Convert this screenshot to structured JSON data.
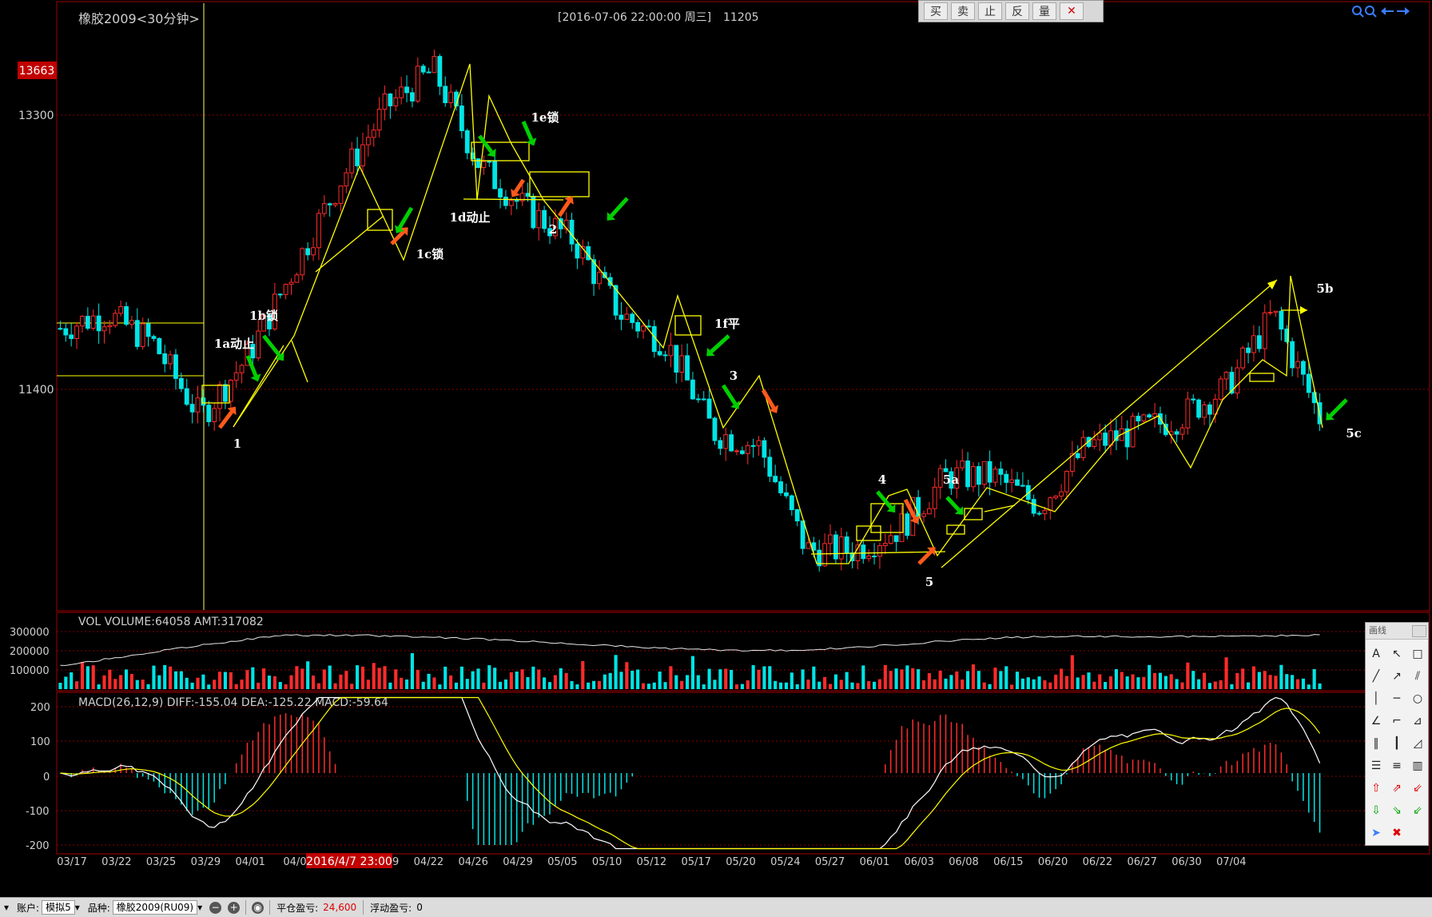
{
  "chart_header": {
    "instrument": "橡胶2009<30分钟>",
    "datetime": "[2016-07-06  22:00:00 周三]",
    "price_value": "11205",
    "current_high_label": "13663"
  },
  "toolbar": {
    "buttons": [
      "买",
      "卖",
      "止",
      "反",
      "量"
    ],
    "close_icon": "close-icon"
  },
  "top_right_icons": [
    "zoom-in-icon",
    "zoom-out-icon",
    "arrow-left-icon",
    "arrow-right-icon"
  ],
  "colors": {
    "up": "#ff2b2b",
    "down": "#00e5e5",
    "wave_lines": "#ffff00",
    "buy_arrow": "#ff5a1a",
    "sell_arrow": "#00d000",
    "label_red_bg": "#c00000"
  },
  "wave_labels": [
    "1",
    "1a动止",
    "1b锁",
    "1c锁",
    "1d动止",
    "1e锁",
    "2",
    "1f平",
    "3",
    "4",
    "5",
    "5a",
    "5b",
    "5c"
  ],
  "volume_panel": {
    "title": "VOL  VOLUME:64058 AMT:317082",
    "y_ticks": [
      "300000",
      "200000",
      "100000"
    ]
  },
  "macd_panel": {
    "title": "MACD(26,12,9)  DIFF:-155.04 DEA:-125.22 MACD:-59.64",
    "y_ticks": [
      "200",
      "100",
      "0",
      "-100",
      "-200"
    ]
  },
  "x_axis": {
    "dates": [
      "03/17",
      "03/22",
      "03/25",
      "03/29",
      "04/01",
      "04/0",
      "4",
      "04/19",
      "04/22",
      "04/26",
      "04/29",
      "05/05",
      "05/10",
      "05/12",
      "05/17",
      "05/20",
      "05/24",
      "05/27",
      "06/01",
      "06/03",
      "06/08",
      "06/15",
      "06/20",
      "06/22",
      "06/27",
      "06/30",
      "07/04"
    ],
    "cursor_label": "2016/4/7 23:00"
  },
  "draw_panel": {
    "title": "画线",
    "tools": [
      "text-tool-icon",
      "arrow-pointer-icon",
      "rectangle-icon",
      "line-icon",
      "ray-icon",
      "parallel-lines-icon",
      "vertical-line-icon",
      "horizontal-line-icon",
      "ellipse-icon",
      "angle-icon",
      "angle-alt-icon",
      "fan-icon",
      "cycle-lines-icon",
      "fibonacci-time-icon",
      "gann-icon",
      "channel-icon",
      "channel-alt-icon",
      "bar-icon",
      "up-arrow-icon",
      "up-right-arrow-icon",
      "down-left-arrow-icon",
      "down-arrow-icon",
      "down-right-arrow-icon",
      "down-left-green-arrow-icon",
      "cursor-icon",
      "delete-icon"
    ]
  },
  "status_bar": {
    "account_label": "账户:",
    "account_value": "模拟5",
    "symbol_label": "品种:",
    "symbol_value": "橡胶2009(RU09)",
    "closed_pnl_label": "平仓盈亏:",
    "closed_pnl_value": "24,600",
    "float_pnl_label": "浮动盈亏:",
    "float_pnl_value": "0"
  },
  "chart_data": {
    "type": "candlestick",
    "title": "橡胶2009<30分钟>",
    "price_axis_labels": [
      13300,
      11400
    ],
    "ylim": [
      9900,
      14000
    ],
    "price_path_dates": [
      "03/17",
      "03/22",
      "03/25",
      "03/29",
      "04/01",
      "04/07",
      "04/13",
      "04/19",
      "04/22",
      "04/26",
      "04/29",
      "05/05",
      "05/10",
      "05/12",
      "05/17",
      "05/20",
      "05/24",
      "05/27",
      "06/01",
      "06/03",
      "06/08",
      "06/15",
      "06/20",
      "06/22",
      "06/27",
      "06/30",
      "07/04",
      "07/06"
    ],
    "price_path_values": [
      11800,
      11900,
      11700,
      11200,
      11600,
      12200,
      12800,
      13300,
      13550,
      12900,
      12600,
      12400,
      11900,
      11700,
      11100,
      11000,
      10300,
      10300,
      10450,
      10800,
      10800,
      10600,
      11000,
      11100,
      11200,
      11400,
      11900,
      11200
    ],
    "volume_ylim": [
      0,
      340000
    ],
    "macd_ylim": [
      -220,
      220
    ],
    "last_values": {
      "DIFF": -155.04,
      "DEA": -125.22,
      "MACD": -59.64,
      "VOLUME": 64058,
      "AMT": 317082
    }
  }
}
